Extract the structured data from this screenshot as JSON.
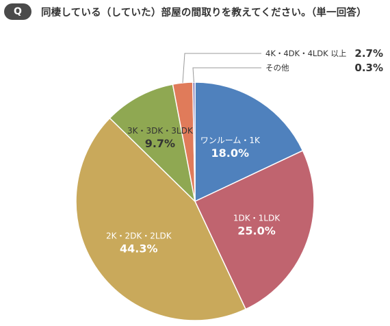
{
  "header": {
    "badge": "Q",
    "question": "同棲している（していた）部屋の間取りを教えてください。（単一回答）"
  },
  "chart_data": {
    "type": "pie",
    "title": "同棲している（していた）部屋の間取りを教えてください。（単一回答）",
    "slices": [
      {
        "label": "ワンルーム・1K",
        "value": 18.0,
        "value_label": "18.0%",
        "color": "#4f81bd",
        "label_color": "#ffffff",
        "label_mode": "inside"
      },
      {
        "label": "1DK・1LDK",
        "value": 25.0,
        "value_label": "25.0%",
        "color": "#c0646f",
        "label_color": "#ffffff",
        "label_mode": "inside"
      },
      {
        "label": "2K・2DK・2LDK",
        "value": 44.3,
        "value_label": "44.3%",
        "color": "#c9a95b",
        "label_color": "#ffffff",
        "label_mode": "inside"
      },
      {
        "label": "3K・3DK・3LDK",
        "value": 9.7,
        "value_label": "9.7%",
        "color": "#8fa852",
        "label_color": "#333333",
        "label_mode": "inside"
      },
      {
        "label": "4K・4DK・4LDK 以上",
        "value": 2.7,
        "value_label": "2.7%",
        "color": "#e07b5a",
        "label_color": "#333333",
        "label_mode": "outside"
      },
      {
        "label": "その他",
        "value": 0.3,
        "value_label": "0.3%",
        "color": "#7b6fb0",
        "label_color": "#333333",
        "label_mode": "outside"
      }
    ],
    "start_angle": "12 o'clock",
    "direction": "clockwise"
  }
}
